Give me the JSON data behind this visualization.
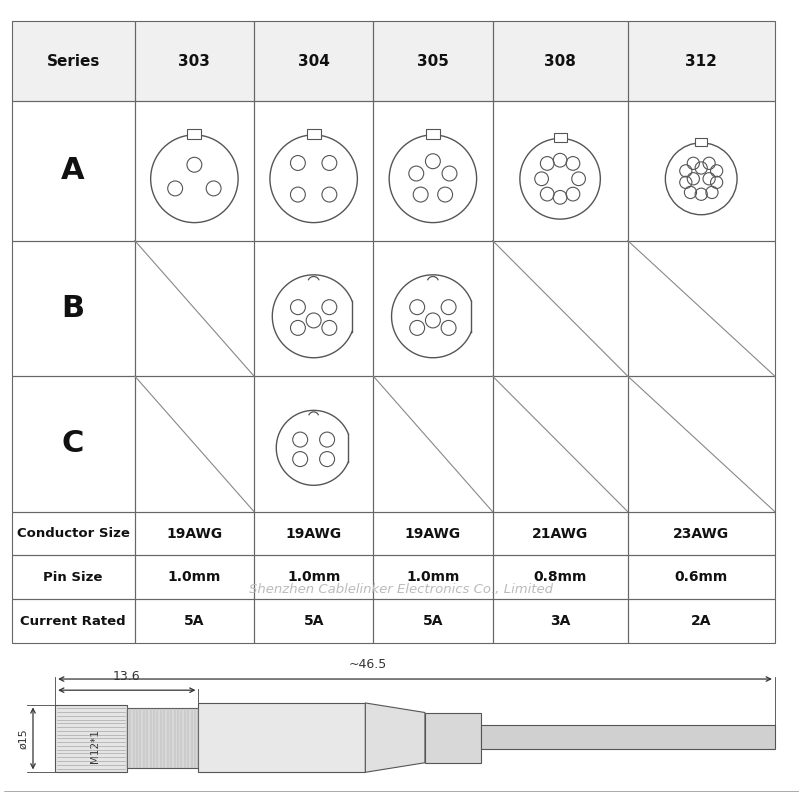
{
  "series_headers": [
    "Series",
    "303",
    "304",
    "305",
    "308",
    "312"
  ],
  "row_labels": [
    "A",
    "B",
    "C"
  ],
  "conductor_size": [
    "19AWG",
    "19AWG",
    "19AWG",
    "21AWG",
    "23AWG"
  ],
  "pin_size": [
    "1.0mm",
    "1.0mm",
    "1.0mm",
    "0.8mm",
    "0.6mm"
  ],
  "current_rated": [
    "5A",
    "5A",
    "5A",
    "3A",
    "2A"
  ],
  "watermark": "Shenzhen Cablelinker Electronics Co., Limited",
  "bg_color": "#ffffff",
  "line_color": "#333333",
  "grid_color": "#888888",
  "dim1": "~46.5",
  "dim2": "13.6",
  "dim3": "ø15",
  "dim4": "M12*1"
}
